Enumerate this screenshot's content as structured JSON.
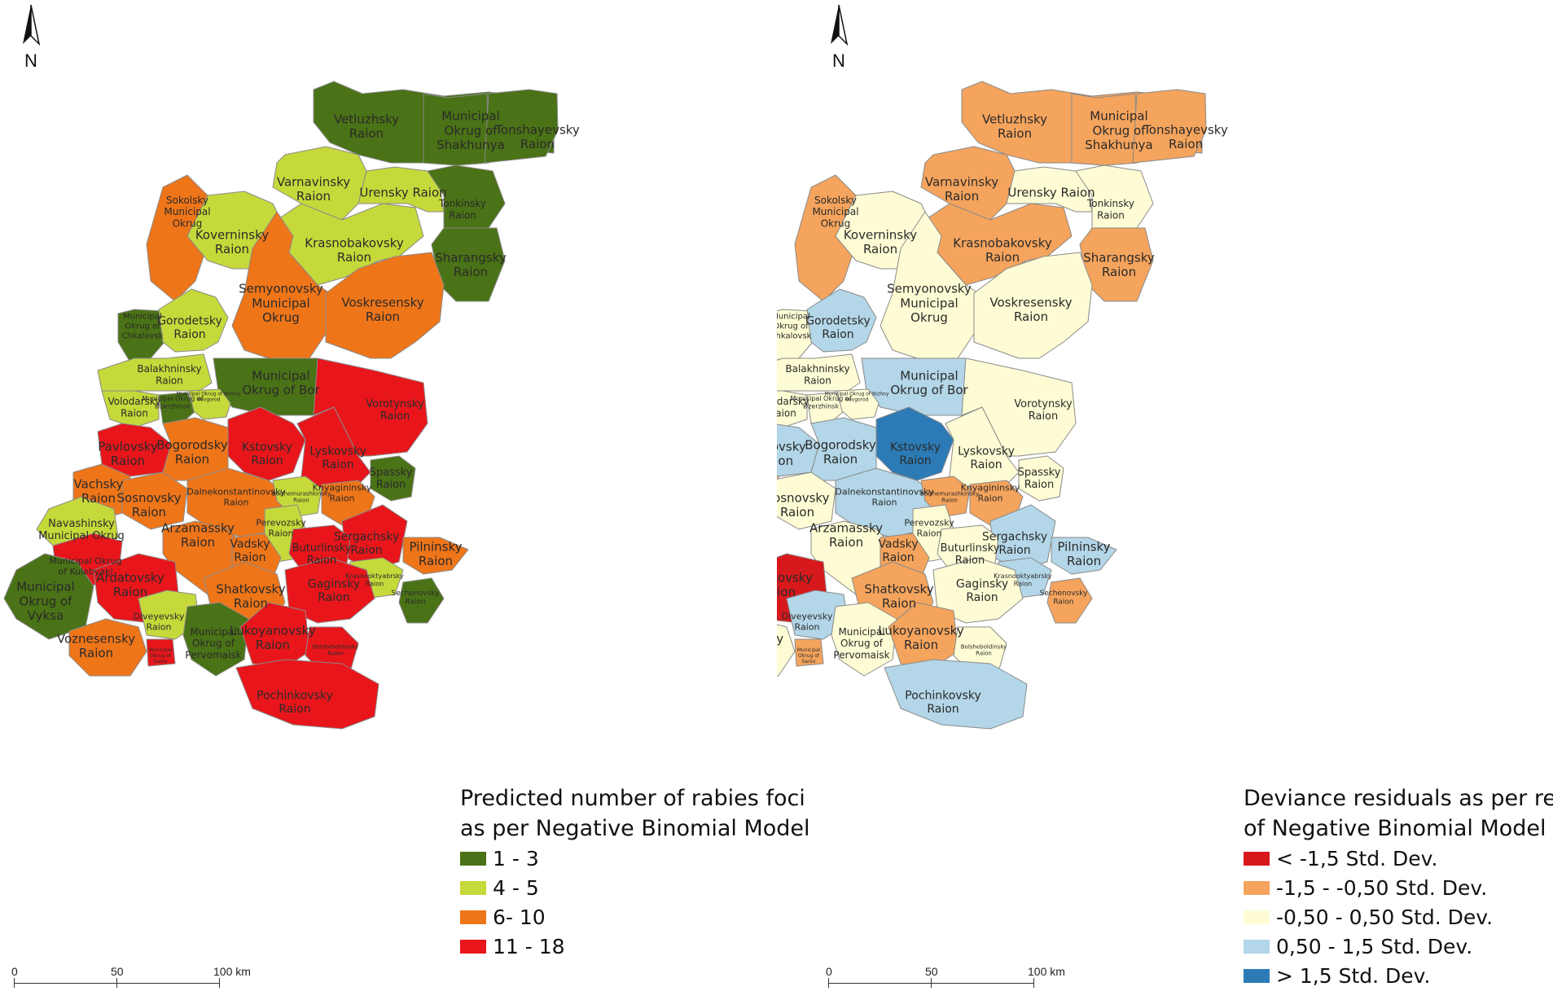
{
  "north_label": "N",
  "left_map": {
    "legend": {
      "title_line1": "Predicted number of rabies foci",
      "title_line2": "as per Negative Binomial Model",
      "items": [
        {
          "label": "1 - 3",
          "color": "#4a7216"
        },
        {
          "label": "4 - 5",
          "color": "#c6d93a"
        },
        {
          "label": "6- 10",
          "color": "#ef7519"
        },
        {
          "label": "11 - 18",
          "color": "#e8161b"
        }
      ]
    }
  },
  "right_map": {
    "legend": {
      "title_line1": "Deviance residuals as per results",
      "title_line2": "of Negative Binomial Model",
      "items": [
        {
          "label": "< -1,5 Std. Dev.",
          "color": "#d7191c"
        },
        {
          "label": "-1,5 - -0,50 Std. Dev.",
          "color": "#f5a45d"
        },
        {
          "label": "-0,50 - 0,50 Std. Dev.",
          "color": "#fefcd4"
        },
        {
          "label": "0,50 - 1,5 Std. Dev.",
          "color": "#b3d6e8"
        },
        {
          "label": "> 1,5 Std. Dev.",
          "color": "#2c7bb6"
        }
      ]
    }
  },
  "scalebar": {
    "tick0": "0",
    "tick1": "50",
    "tick2": "100 km"
  },
  "regions": [
    {
      "lines": [
        "Vetluzhsky",
        "Raion"
      ],
      "left_class": 0,
      "right_class": 1
    },
    {
      "lines": [
        "Municipal",
        "Okrug of",
        "Shakhunya"
      ],
      "left_class": 0,
      "right_class": 1
    },
    {
      "lines": [
        "Tonshayevsky",
        "Raion"
      ],
      "left_class": 0,
      "right_class": 1
    },
    {
      "lines": [
        "Varnavinsky",
        "Raion"
      ],
      "left_class": 1,
      "right_class": 1
    },
    {
      "lines": [
        "Urensky Raion"
      ],
      "left_class": 1,
      "right_class": 2
    },
    {
      "lines": [
        "Tonkinsky",
        "Raion"
      ],
      "left_class": 0,
      "right_class": 2
    },
    {
      "lines": [
        "Sokolsky",
        "Municipal",
        "Okrug"
      ],
      "left_class": 2,
      "right_class": 1
    },
    {
      "lines": [
        "Koverninsky",
        "Raion"
      ],
      "left_class": 1,
      "right_class": 2
    },
    {
      "lines": [
        "Krasnobakovsky",
        "Raion"
      ],
      "left_class": 1,
      "right_class": 1
    },
    {
      "lines": [
        "Sharangsky",
        "Raion"
      ],
      "left_class": 0,
      "right_class": 1
    },
    {
      "lines": [
        "Semyonovsky",
        "Municipal",
        "Okrug"
      ],
      "left_class": 2,
      "right_class": 2
    },
    {
      "lines": [
        "Voskresensky",
        "Raion"
      ],
      "left_class": 2,
      "right_class": 2
    },
    {
      "lines": [
        "Municipal",
        "Okrug of",
        "Chkalovsk"
      ],
      "left_class": 0,
      "right_class": 2
    },
    {
      "lines": [
        "Gorodetsky",
        "Raion"
      ],
      "left_class": 1,
      "right_class": 3
    },
    {
      "lines": [
        "Balakhninsky",
        "Raion"
      ],
      "left_class": 1,
      "right_class": 2
    },
    {
      "lines": [
        "Municipal",
        "Okrug of Bor"
      ],
      "left_class": 0,
      "right_class": 3
    },
    {
      "lines": [
        "Volodarsky",
        "Raion"
      ],
      "left_class": 1,
      "right_class": 2
    },
    {
      "lines": [
        "Municipal Okrug of",
        "Dzerzhinsk"
      ],
      "left_class": 0,
      "right_class": 2
    },
    {
      "lines": [
        "Municipal Okrug of Nizhny",
        "Novgorod"
      ],
      "left_class": 1,
      "right_class": 2
    },
    {
      "lines": [
        "Vorotynsky",
        "Raion"
      ],
      "left_class": 3,
      "right_class": 2
    },
    {
      "lines": [
        "Pavlovsky",
        "Raion"
      ],
      "left_class": 3,
      "right_class": 3
    },
    {
      "lines": [
        "Bogorodsky",
        "Raion"
      ],
      "left_class": 2,
      "right_class": 3
    },
    {
      "lines": [
        "Kstovsky",
        "Raion"
      ],
      "left_class": 3,
      "right_class": 4
    },
    {
      "lines": [
        "Lyskovsky",
        "Raion"
      ],
      "left_class": 3,
      "right_class": 2
    },
    {
      "lines": [
        "Spassky",
        "Raion"
      ],
      "left_class": 0,
      "right_class": 2
    },
    {
      "lines": [
        "Vachsky",
        "Raion"
      ],
      "left_class": 2,
      "right_class": 1
    },
    {
      "lines": [
        "Sosnovsky",
        "Raion"
      ],
      "left_class": 2,
      "right_class": 2
    },
    {
      "lines": [
        "Dalnekonstantinovsky",
        "Raion"
      ],
      "left_class": 2,
      "right_class": 3
    },
    {
      "lines": [
        "Bolshemurashkinsky",
        "Raion"
      ],
      "left_class": 1,
      "right_class": 1
    },
    {
      "lines": [
        "Knyagininsky",
        "Raion"
      ],
      "left_class": 2,
      "right_class": 1
    },
    {
      "lines": [
        "Navashinsky",
        "Municipal Okrug"
      ],
      "left_class": 1,
      "right_class": 2
    },
    {
      "lines": [
        "Arzamassky",
        "Raion"
      ],
      "left_class": 2,
      "right_class": 2
    },
    {
      "lines": [
        "Perevozsky",
        "Raion"
      ],
      "left_class": 1,
      "right_class": 2
    },
    {
      "lines": [
        "Sergachsky",
        "Raion"
      ],
      "left_class": 3,
      "right_class": 3
    },
    {
      "lines": [
        "Pilninsky",
        "Raion"
      ],
      "left_class": 2,
      "right_class": 3
    },
    {
      "lines": [
        "Municipal Okrug",
        "of Kulebyaki"
      ],
      "left_class": 3,
      "right_class": 1
    },
    {
      "lines": [
        "Vadsky",
        "Raion"
      ],
      "left_class": 2,
      "right_class": 1
    },
    {
      "lines": [
        "Buturlinsky",
        "Raion"
      ],
      "left_class": 3,
      "right_class": 2
    },
    {
      "lines": [
        "Ardatovsky",
        "Raion"
      ],
      "left_class": 3,
      "right_class": 0
    },
    {
      "lines": [
        "Krasnooktyabrsky",
        "Raion"
      ],
      "left_class": 1,
      "right_class": 3
    },
    {
      "lines": [
        "Sechenovsky",
        "Raion"
      ],
      "left_class": 0,
      "right_class": 1
    },
    {
      "lines": [
        "Municipal",
        "Okrug of",
        "Vyksa"
      ],
      "left_class": 0,
      "right_class": 2
    },
    {
      "lines": [
        "Shatkovsky",
        "Raion"
      ],
      "left_class": 2,
      "right_class": 1
    },
    {
      "lines": [
        "Gaginsky",
        "Raion"
      ],
      "left_class": 3,
      "right_class": 2
    },
    {
      "lines": [
        "Diveyevsky",
        "Raion"
      ],
      "left_class": 1,
      "right_class": 3
    },
    {
      "lines": [
        "Voznesensky",
        "Raion"
      ],
      "left_class": 2,
      "right_class": 2
    },
    {
      "lines": [
        "Municipal",
        "Okrug of",
        "Pervomaisk"
      ],
      "left_class": 0,
      "right_class": 2
    },
    {
      "lines": [
        "Lukoyanovsky",
        "Raion"
      ],
      "left_class": 3,
      "right_class": 1
    },
    {
      "lines": [
        "Bolsheboldinsky",
        "Raion"
      ],
      "left_class": 3,
      "right_class": 2
    },
    {
      "lines": [
        "Municipal",
        "Okrug of",
        "Sarov"
      ],
      "left_class": 3,
      "right_class": 1
    },
    {
      "lines": [
        "Pochinkovsky",
        "Raion"
      ],
      "left_class": 3,
      "right_class": 3
    }
  ]
}
